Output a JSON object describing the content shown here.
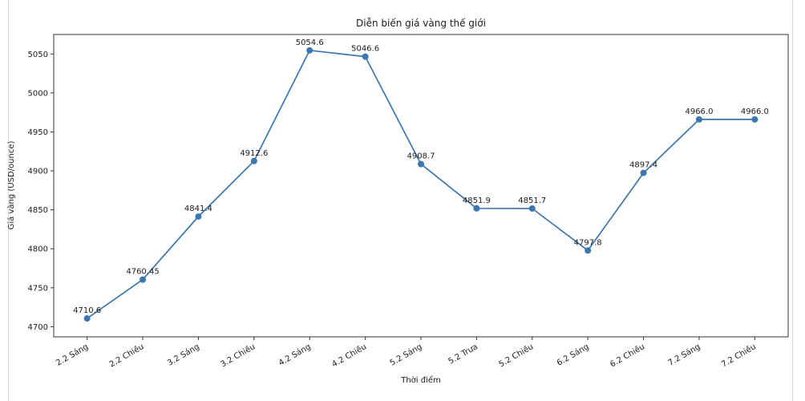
{
  "page": {
    "background_color": "#ffffff",
    "frame_border_color": "#d9d9d9"
  },
  "chart_data": {
    "type": "line",
    "title": "Diễn biến giá vàng thế giới",
    "xlabel": "Thời điểm",
    "ylabel": "Giá vàng (USD/ounce)",
    "categories": [
      "2.2 Sáng",
      "2.2 Chiều",
      "3.2 Sáng",
      "3.2 Chiều",
      "4.2 Sáng",
      "4.2 Chiều",
      "5.2 Sáng",
      "5.2 Trưa",
      "5.2 Chiều",
      "6.2 Sáng",
      "6.2 Chiều",
      "7.2 Sáng",
      "7.2 Chiều"
    ],
    "values": [
      4710.6,
      4760.45,
      4841.4,
      4912.6,
      5054.6,
      5046.6,
      4908.7,
      4851.9,
      4851.7,
      4797.8,
      4897.4,
      4966.0,
      4966.0
    ],
    "point_labels": [
      "4710.6",
      "4760.45",
      "4841.4",
      "4912.6",
      "5054.6",
      "5046.6",
      "4908.7",
      "4851.9",
      "4851.7",
      "4797.8",
      "4897.4",
      "4966.0",
      "4966.0"
    ],
    "yticks": [
      4700,
      4750,
      4800,
      4850,
      4900,
      4950,
      5000,
      5050
    ],
    "ylim": [
      4687,
      5075
    ],
    "xlim": [
      -0.6,
      12.6
    ],
    "x_tick_rotation_deg": 30,
    "grid": false,
    "line_color": "#3b76af",
    "marker_color": "#3b76af",
    "spine_color": "#333333",
    "text_color": "#1a1a1a"
  }
}
